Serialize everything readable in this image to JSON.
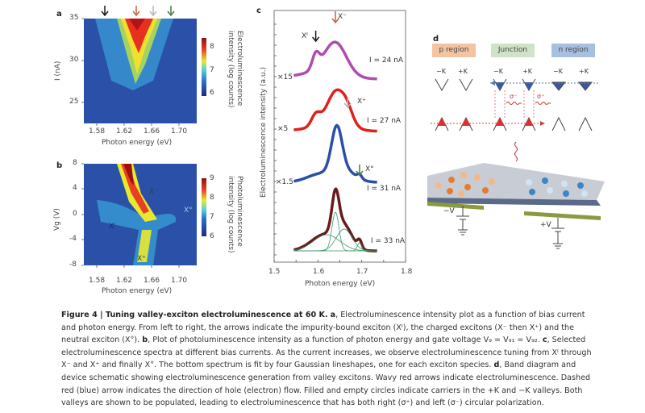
{
  "panels": {
    "a": {
      "letter": "a",
      "ylabel": "I (nA)",
      "xlabel": "Photon energy (eV)",
      "xticks": [
        "1.58",
        "1.62",
        "1.66",
        "1.70"
      ],
      "yticks": [
        "35",
        "30",
        "25"
      ],
      "colorbar_label_line1": "Electroluminescence",
      "colorbar_label_line2": "intensity (log counts)",
      "colorbar_ticks": [
        "8",
        "7",
        "6"
      ],
      "arrow_colors": [
        "#1a1a1a",
        "#c8643c",
        "#b0b8b8",
        "#4a7a4a"
      ]
    },
    "b": {
      "letter": "b",
      "ylabel": "Vg (V)",
      "xlabel": "Photon energy (eV)",
      "xticks": [
        "1.58",
        "1.62",
        "1.66",
        "1.70"
      ],
      "yticks": [
        "8",
        "4",
        "0",
        "-4",
        "-8"
      ],
      "colorbar_label_line1": "Photoluminescence",
      "colorbar_label_line2": "intensity (log counts)",
      "colorbar_ticks": [
        "9",
        "8",
        "7",
        "6"
      ],
      "labels": {
        "xminus": "X⁻",
        "xzero": "X°",
        "xi": "Xᴵ",
        "xplus": "X⁺"
      }
    },
    "c": {
      "letter": "c",
      "ylabel": "Electroluminescence intensity (a.u.)",
      "xlabel": "Photon energy (eV)",
      "xticks": [
        "1.5",
        "1.6",
        "1.7",
        "1.8"
      ],
      "spectra": [
        {
          "current": "I = 24 nA",
          "scale": "×15",
          "color": "#b04cb0"
        },
        {
          "current": "I = 27 nA",
          "scale": "×5",
          "color": "#e0201c"
        },
        {
          "current": "I = 31 nA",
          "scale": "×1.5",
          "color": "#2c4ea8"
        },
        {
          "current": "I = 33 nA",
          "scale": "",
          "color": "#6a1a1a"
        }
      ],
      "annotations": {
        "xi": "Xᴵ",
        "xminus": "X⁻",
        "xplus": "X⁺",
        "xzero": "X°"
      },
      "fit_color": "#3a9a6a"
    },
    "d": {
      "letter": "d",
      "regions": [
        {
          "label": "p region",
          "color": "#f3c4a2"
        },
        {
          "label": "Junction",
          "color": "#cfe3c8"
        },
        {
          "label": "n region",
          "color": "#a8c0e0"
        }
      ],
      "valley_labels": [
        "−K",
        "+K",
        "−K",
        "+K",
        "−K",
        "+K"
      ],
      "sigma_minus": "σ⁻",
      "sigma_plus": "σ⁺",
      "minus_v": "−V",
      "plus_v": "+V"
    }
  },
  "chart_data": [
    {
      "type": "heatmap",
      "title": "a",
      "xlabel": "Photon energy (eV)",
      "ylabel": "I (nA)",
      "xlim": [
        1.56,
        1.73
      ],
      "ylim": [
        22.5,
        35
      ],
      "xticks": [
        1.58,
        1.62,
        1.66,
        1.7
      ],
      "yticks": [
        25,
        30,
        35
      ],
      "colorbar": {
        "label": "Electroluminescence intensity (log counts)",
        "range": [
          5.8,
          8.5
        ],
        "ticks": [
          6,
          7,
          8
        ]
      },
      "arrows_eV": [
        1.595,
        1.64,
        1.668,
        1.695
      ]
    },
    {
      "type": "heatmap",
      "title": "b",
      "xlabel": "Photon energy (eV)",
      "ylabel": "Vg (V)",
      "xlim": [
        1.56,
        1.73
      ],
      "ylim": [
        -8,
        8
      ],
      "xticks": [
        1.58,
        1.62,
        1.66,
        1.7
      ],
      "yticks": [
        -8,
        -4,
        0,
        4,
        8
      ],
      "colorbar": {
        "label": "Photoluminescence intensity (log counts)",
        "range": [
          5.8,
          9
        ],
        "ticks": [
          6,
          7,
          8,
          9
        ]
      },
      "annotations": [
        "X⁻",
        "X°",
        "Xᴵ",
        "X⁺"
      ]
    },
    {
      "type": "line",
      "title": "c",
      "xlabel": "Photon energy (eV)",
      "ylabel": "Electroluminescence intensity (a.u.)",
      "xlim": [
        1.5,
        1.8
      ],
      "xticks": [
        1.5,
        1.6,
        1.7,
        1.8
      ],
      "series": [
        {
          "name": "I = 24 nA (×15)",
          "peaks_eV": [
            1.595,
            1.64
          ]
        },
        {
          "name": "I = 27 nA (×5)",
          "peaks_eV": [
            1.595,
            1.643,
            1.668
          ]
        },
        {
          "name": "I = 31 nA (×1.5)",
          "peaks_eV": [
            1.605,
            1.643,
            1.695
          ]
        },
        {
          "name": "I = 33 nA",
          "peaks_eV": [
            1.62,
            1.64,
            1.66,
            1.695
          ],
          "fit": "four Gaussian lineshapes"
        }
      ]
    }
  ],
  "caption": {
    "figure_label": "Figure 4 | Tuning valley-exciton electroluminescence at 60 K.",
    "a_label": "a",
    "a_text": ", Electroluminescence intensity plot as a function of bias current and photon energy. From left to right, the arrows indicate the impurity-bound exciton (Xᴵ), the charged excitons (X⁻ then X⁺) and the neutral exciton (X°).",
    "b_label": "b",
    "b_text": ", Plot of photoluminescence intensity as a function of photon energy and gate voltage V₉ = V₉₁ = V₉₂.",
    "c_label": "c",
    "c_text": ", Selected electroluminescence spectra at different bias currents. As the current increases, we observe electroluminescence tuning from Xᴵ through X⁻ and X⁺ and finally X°. The bottom spectrum is fit by four Gaussian lineshapes, one for each exciton species.",
    "d_label": "d",
    "d_text": ", Band diagram and device schematic showing electroluminescence generation from valley excitons. Wavy red arrows indicate electroluminescence. Dashed red (blue) arrow indicates the direction of hole (electron) flow. Filled and empty circles indicate carriers in the +K and −K valleys. Both valleys are shown to be populated, leading to electroluminescence that has both right (σ⁺) and left (σ⁻) circular polarization."
  }
}
